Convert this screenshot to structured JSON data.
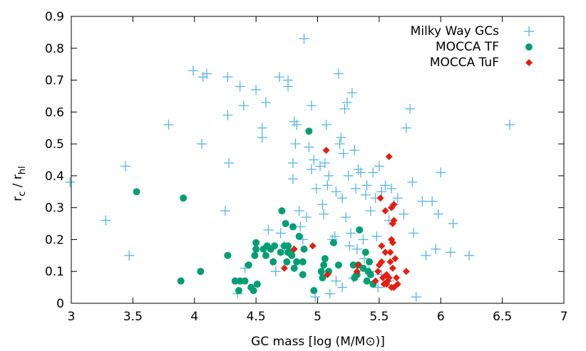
{
  "chart_data": {
    "type": "scatter",
    "title": "",
    "xlabel": "GC mass [log (M/M⊙)]",
    "ylabel_main": "r",
    "ylabel_sub1": "c",
    "ylabel_mid": " / r",
    "ylabel_sub2": "hl",
    "xlim": [
      3,
      7
    ],
    "ylim": [
      0,
      0.9
    ],
    "x_ticks": [
      3,
      3.5,
      4,
      4.5,
      5,
      5.5,
      6,
      6.5,
      7
    ],
    "y_ticks": [
      0,
      0.1,
      0.2,
      0.3,
      0.4,
      0.5,
      0.6,
      0.7,
      0.8,
      0.9
    ],
    "x_tick_labels": [
      "3",
      "3.5",
      "4",
      "4.5",
      "5",
      "5.5",
      "6",
      "6.5",
      "7"
    ],
    "y_tick_labels": [
      "0",
      "0.1",
      "0.2",
      "0.3",
      "0.4",
      "0.5",
      "0.6",
      "0.7",
      "0.8",
      "0.9"
    ],
    "legend_position": "top-right",
    "series": [
      {
        "name": "Milky Way GCs",
        "marker": "plus",
        "color": "#56b4e9",
        "points": [
          [
            2.99,
            0.38
          ],
          [
            3.28,
            0.26
          ],
          [
            3.44,
            0.43
          ],
          [
            3.47,
            0.15
          ],
          [
            3.79,
            0.56
          ],
          [
            3.99,
            0.73
          ],
          [
            4.06,
            0.5
          ],
          [
            4.07,
            0.71
          ],
          [
            4.1,
            0.72
          ],
          [
            4.25,
            0.29
          ],
          [
            4.27,
            0.71
          ],
          [
            4.27,
            0.59
          ],
          [
            4.28,
            0.44
          ],
          [
            4.35,
            0.03
          ],
          [
            4.37,
            0.68
          ],
          [
            4.4,
            0.62
          ],
          [
            4.41,
            0.11
          ],
          [
            4.5,
            0.67
          ],
          [
            4.55,
            0.55
          ],
          [
            4.55,
            0.52
          ],
          [
            4.58,
            0.63
          ],
          [
            4.6,
            0.23
          ],
          [
            4.66,
            0.1
          ],
          [
            4.69,
            0.71
          ],
          [
            4.73,
            0.18
          ],
          [
            4.76,
            0.7
          ],
          [
            4.76,
            0.68
          ],
          [
            4.8,
            0.39
          ],
          [
            4.81,
            0.57
          ],
          [
            4.8,
            0.44
          ],
          [
            4.82,
            0.5
          ],
          [
            4.83,
            0.56
          ],
          [
            4.85,
            0.29
          ],
          [
            4.86,
            0.24
          ],
          [
            4.88,
            0.2
          ],
          [
            4.89,
            0.83
          ],
          [
            4.93,
            0.49
          ],
          [
            4.95,
            0.62
          ],
          [
            4.95,
            0.42
          ],
          [
            4.97,
            0.45
          ],
          [
            4.98,
            0.02
          ],
          [
            4.99,
            0.36
          ],
          [
            5.02,
            0.43
          ],
          [
            5.04,
            0.31
          ],
          [
            5.05,
            0.28
          ],
          [
            5.06,
            0.44
          ],
          [
            5.07,
            0.56
          ],
          [
            5.08,
            0.37
          ],
          [
            5.09,
            0.4
          ],
          [
            5.1,
            0.03
          ],
          [
            5.12,
            0.2
          ],
          [
            5.14,
            0.21
          ],
          [
            5.15,
            0.35
          ],
          [
            5.17,
            0.72
          ],
          [
            5.18,
            0.5
          ],
          [
            5.19,
            0.52
          ],
          [
            5.2,
            0.33
          ],
          [
            5.21,
            0.47
          ],
          [
            5.22,
            0.61
          ],
          [
            5.23,
            0.27
          ],
          [
            5.24,
            0.63
          ],
          [
            5.25,
            0.4
          ],
          [
            5.26,
            0.18
          ],
          [
            5.27,
            0.22
          ],
          [
            5.28,
            0.66
          ],
          [
            5.29,
            0.08
          ],
          [
            5.3,
            0.48
          ],
          [
            5.31,
            0.36
          ],
          [
            5.32,
            0.17
          ],
          [
            5.33,
            0.42
          ],
          [
            5.35,
            0.41
          ],
          [
            5.37,
            0.2
          ],
          [
            5.38,
            0.14
          ],
          [
            5.39,
            0.34
          ],
          [
            5.4,
            0.37
          ],
          [
            5.42,
            0.1
          ],
          [
            5.43,
            0.29
          ],
          [
            5.45,
            0.41
          ],
          [
            5.47,
            0.33
          ],
          [
            5.48,
            0.21
          ],
          [
            5.49,
            0.05
          ],
          [
            5.5,
            0.43
          ],
          [
            5.52,
            0.35
          ],
          [
            5.55,
            0.37
          ],
          [
            5.58,
            0.26
          ],
          [
            5.6,
            0.36
          ],
          [
            5.62,
            0.31
          ],
          [
            5.65,
            0.33
          ],
          [
            5.7,
            0.28
          ],
          [
            5.72,
            0.55
          ],
          [
            5.75,
            0.61
          ],
          [
            5.77,
            0.38
          ],
          [
            5.78,
            0.22
          ],
          [
            5.8,
            0.02
          ],
          [
            5.85,
            0.32
          ],
          [
            5.88,
            0.15
          ],
          [
            5.93,
            0.32
          ],
          [
            5.96,
            0.17
          ],
          [
            5.98,
            0.28
          ],
          [
            6.0,
            0.41
          ],
          [
            6.08,
            0.16
          ],
          [
            6.1,
            0.25
          ],
          [
            6.23,
            0.15
          ],
          [
            6.56,
            0.56
          ],
          [
            5.58,
            0.07
          ],
          [
            5.52,
            0.09
          ],
          [
            5.15,
            0.07
          ],
          [
            5.2,
            0.05
          ],
          [
            4.91,
            0.27
          ],
          [
            4.7,
            0.22
          ]
        ]
      },
      {
        "name": "MOCCA TF",
        "marker": "circle",
        "color": "#009e73",
        "points": [
          [
            3.53,
            0.35
          ],
          [
            3.91,
            0.33
          ],
          [
            3.89,
            0.07
          ],
          [
            4.05,
            0.1
          ],
          [
            4.27,
            0.15
          ],
          [
            4.33,
            0.07
          ],
          [
            4.36,
            0.04
          ],
          [
            4.37,
            0.07
          ],
          [
            4.41,
            0.07
          ],
          [
            4.44,
            0.12
          ],
          [
            4.46,
            0.05
          ],
          [
            4.48,
            0.04
          ],
          [
            4.49,
            0.15
          ],
          [
            4.5,
            0.17
          ],
          [
            4.5,
            0.19
          ],
          [
            4.51,
            0.06
          ],
          [
            4.56,
            0.17
          ],
          [
            4.58,
            0.15
          ],
          [
            4.59,
            0.18
          ],
          [
            4.62,
            0.17
          ],
          [
            4.64,
            0.13
          ],
          [
            4.65,
            0.18
          ],
          [
            4.7,
            0.16
          ],
          [
            4.71,
            0.29
          ],
          [
            4.73,
            0.18
          ],
          [
            4.74,
            0.25
          ],
          [
            4.75,
            0.13
          ],
          [
            4.76,
            0.16
          ],
          [
            4.76,
            0.18
          ],
          [
            4.78,
            0.16
          ],
          [
            4.79,
            0.15
          ],
          [
            4.8,
            0.24
          ],
          [
            4.81,
            0.11
          ],
          [
            4.83,
            0.13
          ],
          [
            4.85,
            0.21
          ],
          [
            4.88,
            0.09
          ],
          [
            4.88,
            0.13
          ],
          [
            4.89,
            0.17
          ],
          [
            4.93,
            0.54
          ],
          [
            4.97,
            0.04
          ],
          [
            5.03,
            0.1
          ],
          [
            5.04,
            0.08
          ],
          [
            5.05,
            0.12
          ],
          [
            5.06,
            0.14
          ],
          [
            5.09,
            0.1
          ],
          [
            5.13,
            0.19
          ],
          [
            5.17,
            0.12
          ],
          [
            5.29,
            0.12
          ],
          [
            5.3,
            0.08
          ],
          [
            5.32,
            0.09
          ],
          [
            5.33,
            0.12
          ],
          [
            5.34,
            0.23
          ],
          [
            5.37,
            0.11
          ],
          [
            5.39,
            0.16
          ],
          [
            5.4,
            0.07
          ],
          [
            5.41,
            0.1
          ],
          [
            5.42,
            0.13
          ],
          [
            5.43,
            0.09
          ],
          [
            5.45,
            0.06
          ]
        ]
      },
      {
        "name": "MOCCA TuF",
        "marker": "diamond",
        "color": "#e51e10",
        "points": [
          [
            4.73,
            0.11
          ],
          [
            4.81,
            0.17
          ],
          [
            4.96,
            0.18
          ],
          [
            5.07,
            0.48
          ],
          [
            5.08,
            0.09
          ],
          [
            5.32,
            0.1
          ],
          [
            5.33,
            0.12
          ],
          [
            5.47,
            0.07
          ],
          [
            5.49,
            0.1
          ],
          [
            5.5,
            0.12
          ],
          [
            5.51,
            0.33
          ],
          [
            5.52,
            0.18
          ],
          [
            5.52,
            0.13
          ],
          [
            5.53,
            0.08
          ],
          [
            5.54,
            0.06
          ],
          [
            5.55,
            0.16
          ],
          [
            5.55,
            0.29
          ],
          [
            5.56,
            0.06
          ],
          [
            5.57,
            0.07
          ],
          [
            5.58,
            0.08
          ],
          [
            5.58,
            0.46
          ],
          [
            5.59,
            0.16
          ],
          [
            5.6,
            0.2
          ],
          [
            5.6,
            0.3
          ],
          [
            5.6,
            0.05
          ],
          [
            5.61,
            0.25
          ],
          [
            5.61,
            0.19
          ],
          [
            5.61,
            0.11
          ],
          [
            5.62,
            0.26
          ],
          [
            5.62,
            0.31
          ],
          [
            5.62,
            0.05
          ],
          [
            5.63,
            0.14
          ],
          [
            5.64,
            0.08
          ],
          [
            5.65,
            0.06
          ],
          [
            5.72,
            0.1
          ],
          [
            5.56,
            0.09
          ],
          [
            5.59,
            0.13
          ]
        ]
      }
    ]
  }
}
